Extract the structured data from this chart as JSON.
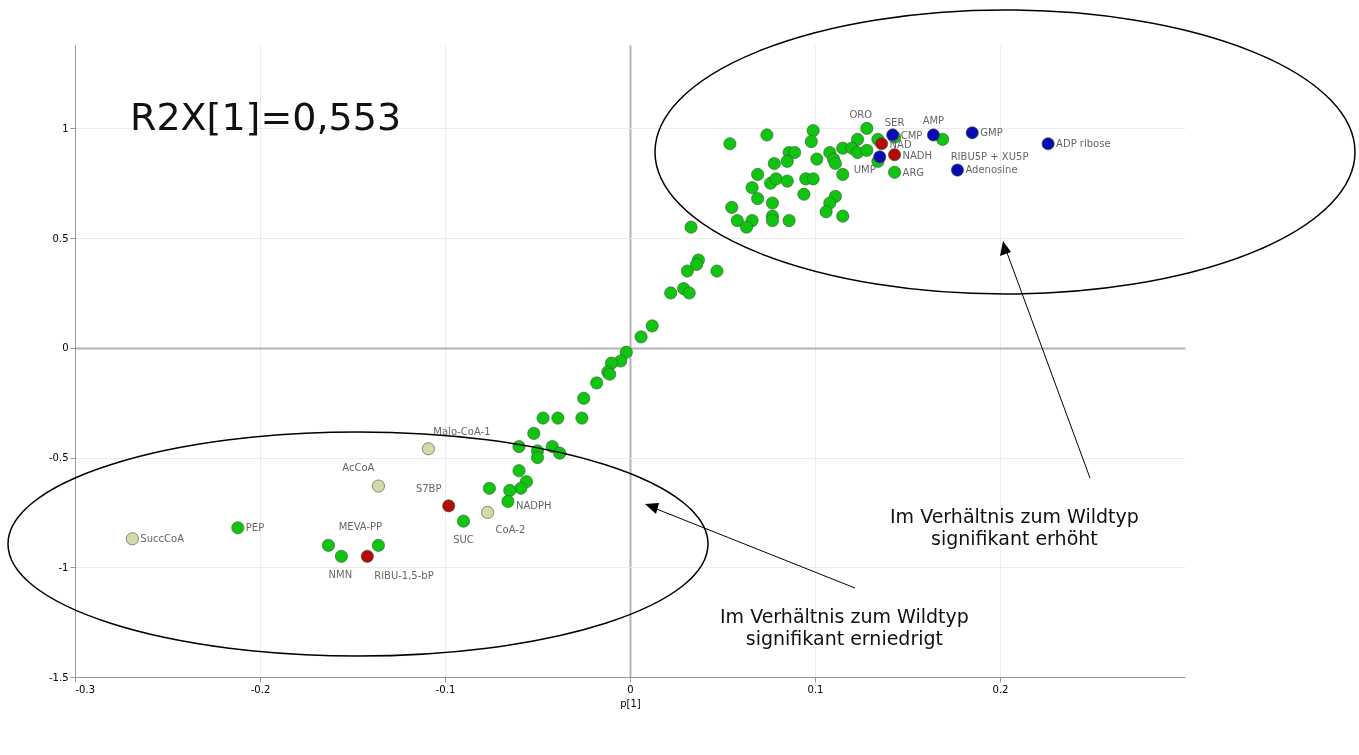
{
  "chart_data": {
    "type": "scatter",
    "xlabel": "p[1]",
    "xlim": [
      -0.3,
      0.3
    ],
    "ylim": [
      -1.5,
      1.38
    ],
    "xticks": [
      -0.3,
      -0.2,
      -0.1,
      0,
      0.1,
      0.2
    ],
    "yticks": [
      -1.5,
      -1,
      -0.5,
      0,
      0.5,
      1
    ],
    "grid": true,
    "marker": "circle",
    "series": [
      {
        "color": "#11c411",
        "x": [
          0.054,
          0.074,
          0.099,
          0.098,
          0.086,
          0.089,
          0.085,
          0.078,
          0.101,
          0.108,
          0.11,
          0.111,
          0.115,
          0.123,
          0.12,
          0.123,
          0.128,
          0.128,
          0.134,
          0.134,
          0.143,
          0.143,
          0.169,
          0.115,
          0.069,
          0.066,
          0.076,
          0.079,
          0.085,
          0.095,
          0.099,
          0.069,
          0.077,
          0.094,
          0.111,
          0.108,
          0.106,
          0.115,
          0.055,
          0.058,
          0.066,
          0.063,
          0.077,
          0.077,
          0.086,
          0.033,
          0.037,
          0.036,
          0.031,
          0.047,
          0.022,
          0.029,
          0.032,
          0.012,
          0.006,
          -0.002,
          -0.005,
          -0.01,
          -0.012,
          -0.011,
          -0.018,
          -0.025,
          -0.026,
          -0.047,
          -0.039,
          -0.052,
          -0.06,
          -0.05,
          -0.05,
          -0.042,
          -0.038,
          -0.06,
          -0.056,
          -0.059,
          -0.065,
          -0.076,
          -0.066,
          -0.09,
          -0.212,
          -0.163,
          -0.156,
          -0.136
        ],
        "values": [
          0.93,
          0.97,
          0.99,
          0.94,
          0.89,
          0.89,
          0.85,
          0.84,
          0.86,
          0.89,
          0.86,
          0.84,
          0.91,
          0.95,
          0.91,
          0.89,
          0.9,
          1.0,
          0.95,
          0.85,
          0.96,
          0.8,
          0.95,
          0.79,
          0.79,
          0.73,
          0.75,
          0.77,
          0.76,
          0.77,
          0.77,
          0.68,
          0.66,
          0.7,
          0.69,
          0.66,
          0.62,
          0.6,
          0.64,
          0.58,
          0.58,
          0.55,
          0.6,
          0.58,
          0.58,
          0.55,
          0.4,
          0.38,
          0.35,
          0.35,
          0.25,
          0.27,
          0.25,
          0.1,
          0.05,
          -0.02,
          -0.06,
          -0.07,
          -0.11,
          -0.12,
          -0.16,
          -0.23,
          -0.32,
          -0.32,
          -0.32,
          -0.39,
          -0.45,
          -0.47,
          -0.5,
          -0.45,
          -0.48,
          -0.56,
          -0.61,
          -0.64,
          -0.65,
          -0.64,
          -0.7,
          -0.79,
          -0.82,
          -0.9,
          -0.95,
          -0.9
        ]
      },
      {
        "color": "#0a0ab4",
        "x": [
          0.142,
          0.135,
          0.164,
          0.185,
          0.226,
          0.177
        ],
        "values": [
          0.97,
          0.87,
          0.97,
          0.98,
          0.93,
          0.81
        ]
      },
      {
        "color": "#b40a0a",
        "x": [
          0.136,
          0.143,
          -0.098,
          -0.142
        ],
        "values": [
          0.93,
          0.88,
          -0.72,
          -0.95
        ]
      },
      {
        "color": "#d9d6aa",
        "x": [
          -0.109,
          -0.136,
          -0.077,
          -0.269
        ],
        "values": [
          -0.46,
          -0.63,
          -0.75,
          -0.87
        ]
      }
    ],
    "annotations": [
      {
        "text": "ORO",
        "x": 0.128,
        "y": 1.0
      },
      {
        "text": "SER",
        "x": 0.143,
        "y": 0.96
      },
      {
        "text": "AMP",
        "x": 0.164,
        "y": 0.97
      },
      {
        "text": "CMP",
        "x": 0.142,
        "y": 0.97
      },
      {
        "text": "NAD",
        "x": 0.136,
        "y": 0.93
      },
      {
        "text": "NADH",
        "x": 0.143,
        "y": 0.88
      },
      {
        "text": "UMP",
        "x": 0.135,
        "y": 0.87
      },
      {
        "text": "ARG",
        "x": 0.143,
        "y": 0.8
      },
      {
        "text": "GMP",
        "x": 0.185,
        "y": 0.98
      },
      {
        "text": "ADP ribose",
        "x": 0.226,
        "y": 0.93
      },
      {
        "text": "Adenosine",
        "x": 0.177,
        "y": 0.81
      },
      {
        "text": "RIBU5P + XU5P",
        "x": 0.169,
        "y": 0.95
      },
      {
        "text": "Malo-CoA-1",
        "x": -0.109,
        "y": -0.46
      },
      {
        "text": "AcCoA",
        "x": -0.136,
        "y": -0.63
      },
      {
        "text": "S7BP",
        "x": -0.098,
        "y": -0.72
      },
      {
        "text": "SUC",
        "x": -0.09,
        "y": -0.79
      },
      {
        "text": "CoA-2",
        "x": -0.077,
        "y": -0.75
      },
      {
        "text": "NADPH",
        "x": -0.066,
        "y": -0.7
      },
      {
        "text": "SuccCoA",
        "x": -0.269,
        "y": -0.87
      },
      {
        "text": "PEP",
        "x": -0.212,
        "y": -0.82
      },
      {
        "text": "MEVA-PP",
        "x": -0.136,
        "y": -0.9
      },
      {
        "text": "NMN",
        "x": -0.156,
        "y": -0.95
      },
      {
        "text": "RiBU-1,5-bP",
        "x": -0.142,
        "y": -0.95
      },
      "R2X[1]=0,553",
      "Im Verhältnis zum Wildtyp\nsignifikant erhöht",
      "Im Verhältnis zum Wildtyp\nsignifikant erniedrigt"
    ]
  }
}
